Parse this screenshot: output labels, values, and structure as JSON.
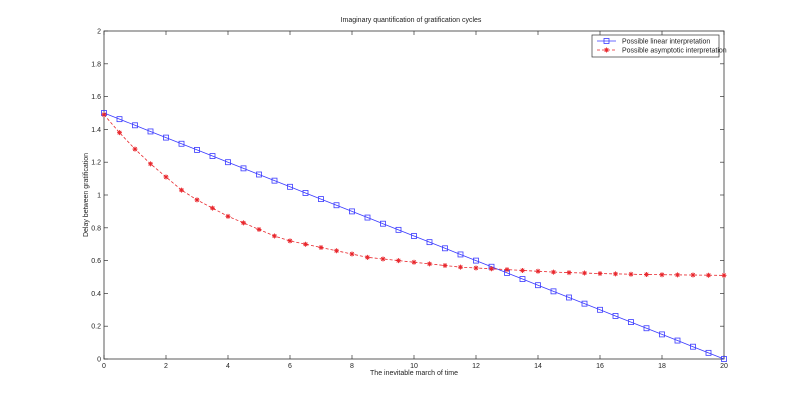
{
  "chart_data": {
    "type": "line",
    "title": "Imaginary quantification of gratification cycles",
    "xlabel": "The inevitable march of time",
    "ylabel": "Delay between gratification",
    "xlim": [
      0,
      20
    ],
    "ylim": [
      0,
      2
    ],
    "xticks": [
      0,
      2,
      4,
      6,
      8,
      10,
      12,
      14,
      16,
      18,
      20
    ],
    "yticks": [
      0,
      0.2,
      0.4,
      0.6,
      0.8,
      1,
      1.2,
      1.4,
      1.6,
      1.8,
      2
    ],
    "grid": false,
    "legend_position": "top-right",
    "x": [
      0,
      0.5,
      1,
      1.5,
      2,
      2.5,
      3,
      3.5,
      4,
      4.5,
      5,
      5.5,
      6,
      6.5,
      7,
      7.5,
      8,
      8.5,
      9,
      9.5,
      10,
      10.5,
      11,
      11.5,
      12,
      12.5,
      13,
      13.5,
      14,
      14.5,
      15,
      15.5,
      16,
      16.5,
      17,
      17.5,
      18,
      18.5,
      19,
      19.5,
      20
    ],
    "series": [
      {
        "name": "Possible linear interpretation",
        "color": "#3a3aff",
        "line_style": "solid",
        "marker": "square",
        "values": [
          1.5,
          1.4625,
          1.425,
          1.3875,
          1.35,
          1.3125,
          1.275,
          1.2375,
          1.2,
          1.1625,
          1.125,
          1.0875,
          1.05,
          1.0125,
          0.975,
          0.9375,
          0.9,
          0.8625,
          0.825,
          0.7875,
          0.75,
          0.7125,
          0.675,
          0.6375,
          0.6,
          0.5625,
          0.525,
          0.4875,
          0.45,
          0.4125,
          0.375,
          0.3375,
          0.3,
          0.2625,
          0.225,
          0.1875,
          0.15,
          0.1125,
          0.075,
          0.0375,
          0
        ]
      },
      {
        "name": "Possible asymptotic interpretation",
        "color": "#e8242a",
        "line_style": "dashed",
        "marker": "star",
        "values": [
          1.49,
          1.38,
          1.28,
          1.19,
          1.11,
          1.03,
          0.97,
          0.92,
          0.87,
          0.83,
          0.79,
          0.75,
          0.72,
          0.7,
          0.68,
          0.66,
          0.64,
          0.62,
          0.61,
          0.6,
          0.59,
          0.58,
          0.57,
          0.56,
          0.555,
          0.55,
          0.545,
          0.54,
          0.535,
          0.53,
          0.527,
          0.524,
          0.521,
          0.519,
          0.517,
          0.515,
          0.514,
          0.513,
          0.512,
          0.511,
          0.51
        ]
      }
    ]
  }
}
